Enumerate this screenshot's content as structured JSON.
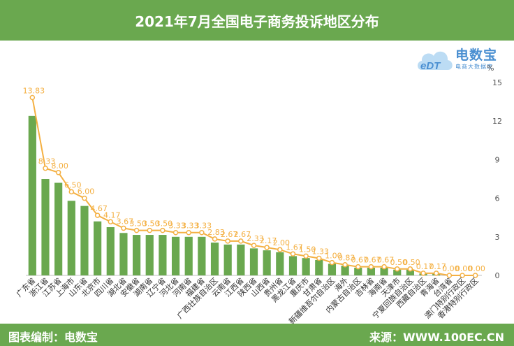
{
  "logo": {
    "brand": "电数宝",
    "subtitle": "电商大数据库"
  },
  "footer": {
    "left": "图表编制：电数宝",
    "right": "来源：WWW.100EC.CN"
  },
  "chart_data": {
    "type": "bar",
    "title": "2021年7月全国电子商务投诉地区分布",
    "y_unit": "%",
    "ylim": [
      0,
      15
    ],
    "yticks": [
      0,
      3,
      6,
      9,
      12,
      15
    ],
    "grid": false,
    "categories": [
      "广东省",
      "浙江省",
      "江苏省",
      "上海市",
      "山东省",
      "北京市",
      "四川省",
      "湖北省",
      "安徽省",
      "湖南省",
      "辽宁省",
      "河北省",
      "河南省",
      "福建省",
      "广西壮族自治区",
      "云南省",
      "江西省",
      "陕西省",
      "山西省",
      "贵州省",
      "黑龙江省",
      "重庆市",
      "甘肃省",
      "新疆维吾尔自治区",
      "海外",
      "内蒙古自治区",
      "吉林省",
      "海南省",
      "天津市",
      "宁夏回族自治区",
      "西藏自治区",
      "青海省",
      "台湾省",
      "澳门特别行政区",
      "香港特别行政区"
    ],
    "series": [
      {
        "type": "bar",
        "color": "#6aa84f",
        "values": [
          12.4,
          7.5,
          7.2,
          5.8,
          5.4,
          4.2,
          3.75,
          3.3,
          3.15,
          3.15,
          3.15,
          3.0,
          3.0,
          3.0,
          2.55,
          2.4,
          2.4,
          2.1,
          1.95,
          1.8,
          1.5,
          1.35,
          1.2,
          0.9,
          0.75,
          0.6,
          0.6,
          0.6,
          0.45,
          0.45,
          0.15,
          0.15,
          0.0,
          0.0,
          0.0
        ]
      },
      {
        "type": "line",
        "color": "#f4b042",
        "values": [
          13.83,
          8.33,
          8.0,
          6.5,
          6.0,
          4.67,
          4.17,
          3.67,
          3.5,
          3.5,
          3.5,
          3.33,
          3.33,
          3.33,
          2.83,
          2.67,
          2.67,
          2.33,
          2.17,
          2.0,
          1.67,
          1.5,
          1.33,
          1.0,
          0.83,
          0.67,
          0.67,
          0.67,
          0.5,
          0.5,
          0.17,
          0.17,
          0.0,
          0.0,
          0.0
        ],
        "labels": [
          "13.83",
          "8.33",
          "8.00",
          "6.50",
          "6.00",
          "4.67",
          "4.17",
          "3.67",
          "3.50",
          "3.50",
          "3.50",
          "3.33",
          "3.33",
          "3.33",
          "2.83",
          "2.67",
          "2.67",
          "2.33",
          "2.17",
          "2.00",
          "1.67",
          "1.50",
          "1.33",
          "1.00",
          "0.83",
          "0.67",
          "0.67",
          "0.67",
          "0.50",
          "0.50",
          "0.17",
          "0.17",
          "0.00",
          "0.00",
          "0.00"
        ]
      }
    ]
  }
}
